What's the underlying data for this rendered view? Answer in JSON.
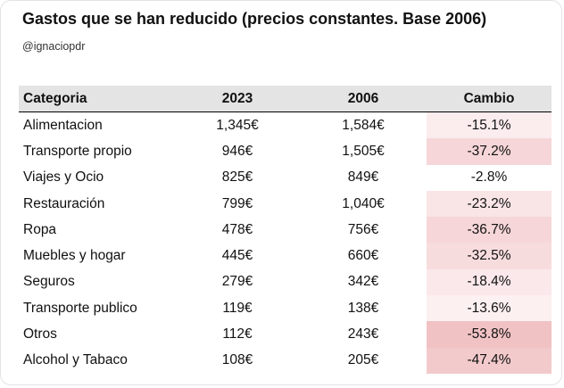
{
  "title": "Gastos que se han reducido (precios constantes. Base 2006)",
  "handle": "@ignaciopdr",
  "chart_data": {
    "type": "table",
    "columns": [
      "Categoria",
      "2023",
      "2006",
      "Cambio"
    ],
    "rows": [
      {
        "categoria": "Alimentacion",
        "y2023": "1,345€",
        "y2006": "1,584€",
        "cambio": "-15.1%",
        "color": "#fbecee"
      },
      {
        "categoria": "Transporte propio",
        "y2023": "946€",
        "y2006": "1,505€",
        "cambio": "-37.2%",
        "color": "#f6d6d8"
      },
      {
        "categoria": "Viajes y Ocio",
        "y2023": "825€",
        "y2006": "849€",
        "cambio": "-2.8%",
        "color": "#ffffff"
      },
      {
        "categoria": "Restauración",
        "y2023": "799€",
        "y2006": "1,040€",
        "cambio": "-23.2%",
        "color": "#f9e4e6"
      },
      {
        "categoria": "Ropa",
        "y2023": "478€",
        "y2006": "756€",
        "cambio": "-36.7%",
        "color": "#f6d6d8"
      },
      {
        "categoria": "Muebles y hogar",
        "y2023": "445€",
        "y2006": "660€",
        "cambio": "-32.5%",
        "color": "#f7dcde"
      },
      {
        "categoria": "Seguros",
        "y2023": "279€",
        "y2006": "342€",
        "cambio": "-18.4%",
        "color": "#fae8ea"
      },
      {
        "categoria": "Transporte publico",
        "y2023": "119€",
        "y2006": "138€",
        "cambio": "-13.6%",
        "color": "#fcf0f1"
      },
      {
        "categoria": "Otros",
        "y2023": "112€",
        "y2006": "243€",
        "cambio": "-53.8%",
        "color": "#f1c2c4"
      },
      {
        "categoria": "Alcohol y Tabaco",
        "y2023": "108€",
        "y2006": "205€",
        "cambio": "-47.4%",
        "color": "#f3cacc"
      }
    ]
  }
}
